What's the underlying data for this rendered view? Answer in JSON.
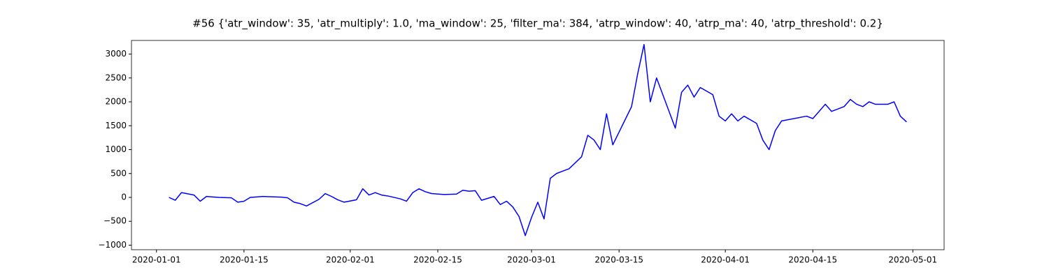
{
  "chart_data": {
    "type": "line",
    "title": "#56 {'atr_window': 35, 'atr_multiply': 1.0, 'ma_window': 25, 'filter_ma': 384, 'atrp_window': 40, 'atrp_ma': 40, 'atrp_threshold': 0.2}",
    "x": [
      "2020-01-03",
      "2020-01-04",
      "2020-01-05",
      "2020-01-07",
      "2020-01-08",
      "2020-01-09",
      "2020-01-10",
      "2020-01-11",
      "2020-01-13",
      "2020-01-14",
      "2020-01-15",
      "2020-01-16",
      "2020-01-17",
      "2020-01-18",
      "2020-01-21",
      "2020-01-22",
      "2020-01-23",
      "2020-01-24",
      "2020-01-25",
      "2020-01-27",
      "2020-01-28",
      "2020-01-29",
      "2020-01-30",
      "2020-01-31",
      "2020-02-02",
      "2020-02-03",
      "2020-02-04",
      "2020-02-05",
      "2020-02-06",
      "2020-02-07",
      "2020-02-09",
      "2020-02-10",
      "2020-02-11",
      "2020-02-12",
      "2020-02-13",
      "2020-02-14",
      "2020-02-16",
      "2020-02-18",
      "2020-02-19",
      "2020-02-20",
      "2020-02-21",
      "2020-02-22",
      "2020-02-24",
      "2020-02-25",
      "2020-02-26",
      "2020-02-27",
      "2020-02-28",
      "2020-02-29",
      "2020-03-01",
      "2020-03-02",
      "2020-03-03",
      "2020-03-04",
      "2020-03-05",
      "2020-03-06",
      "2020-03-07",
      "2020-03-09",
      "2020-03-10",
      "2020-03-11",
      "2020-03-12",
      "2020-03-13",
      "2020-03-14",
      "2020-03-17",
      "2020-03-18",
      "2020-03-19",
      "2020-03-20",
      "2020-03-21",
      "2020-03-23",
      "2020-03-24",
      "2020-03-25",
      "2020-03-26",
      "2020-03-27",
      "2020-03-28",
      "2020-03-30",
      "2020-03-31",
      "2020-04-01",
      "2020-04-02",
      "2020-04-03",
      "2020-04-04",
      "2020-04-06",
      "2020-04-07",
      "2020-04-08",
      "2020-04-09",
      "2020-04-10",
      "2020-04-14",
      "2020-04-15",
      "2020-04-16",
      "2020-04-17",
      "2020-04-18",
      "2020-04-20",
      "2020-04-21",
      "2020-04-22",
      "2020-04-23",
      "2020-04-24",
      "2020-04-25",
      "2020-04-27",
      "2020-04-28",
      "2020-04-29",
      "2020-04-30"
    ],
    "series": [
      {
        "color": "#0000ff",
        "values": [
          0,
          -60,
          100,
          50,
          -80,
          20,
          10,
          0,
          -10,
          -100,
          -80,
          0,
          10,
          20,
          5,
          -10,
          -100,
          -130,
          -180,
          -40,
          80,
          20,
          -50,
          -100,
          -50,
          180,
          50,
          100,
          50,
          30,
          -30,
          -80,
          100,
          180,
          120,
          80,
          60,
          70,
          150,
          130,
          140,
          -60,
          20,
          -150,
          -80,
          -200,
          -400,
          -800,
          -420,
          -100,
          -450,
          400,
          500,
          550,
          600,
          850,
          1300,
          1200,
          1000,
          1750,
          1100,
          1900,
          2600,
          3200,
          2000,
          2500,
          1800,
          1450,
          2200,
          2350,
          2100,
          2300,
          2150,
          1700,
          1600,
          1750,
          1600,
          1700,
          1550,
          1200,
          1000,
          1400,
          1600,
          1700,
          1650,
          1800,
          1950,
          1800,
          1900,
          2050,
          1950,
          1900,
          2000,
          1950,
          1950,
          2000,
          1700,
          1580
        ]
      }
    ],
    "xlim": [
      "2019-12-28",
      "2020-05-06"
    ],
    "xticks": [
      "2020-01-01",
      "2020-01-15",
      "2020-02-01",
      "2020-02-15",
      "2020-03-01",
      "2020-03-15",
      "2020-04-01",
      "2020-04-15",
      "2020-05-01"
    ],
    "ylim": [
      -1095,
      3285
    ],
    "yticks": [
      {
        "value": -1000,
        "label": "−1000"
      },
      {
        "value": -500,
        "label": "−500"
      },
      0,
      500,
      1000,
      1500,
      2000,
      2500,
      3000
    ],
    "grid": false
  }
}
